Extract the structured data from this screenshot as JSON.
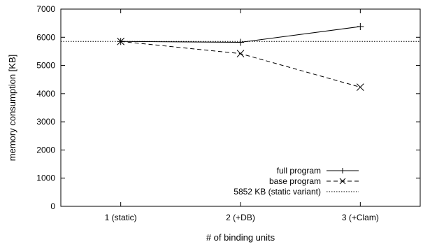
{
  "chart_data": {
    "type": "line",
    "categories": [
      "1 (static)",
      "2 (+DB)",
      "3 (+Clam)"
    ],
    "x": [
      1,
      2,
      3
    ],
    "xlabel": "# of binding units",
    "ylabel": "memory consumption [KB]",
    "ylim": [
      0,
      7000
    ],
    "xlim": [
      0.5,
      3.5
    ],
    "yticks": [
      "0",
      "1000",
      "2000",
      "3000",
      "4000",
      "5000",
      "6000",
      "7000"
    ],
    "grid": false,
    "legend_position": "bottom-right",
    "series": [
      {
        "name": "full program",
        "values": [
          5852,
          5820,
          6380
        ],
        "marker": "plus",
        "line_style": "solid",
        "color": "#000000"
      },
      {
        "name": "base program",
        "values": [
          5852,
          5420,
          4230
        ],
        "marker": "cross",
        "line_style": "dashed",
        "color": "#000000"
      }
    ],
    "reference_lines": [
      {
        "name": "5852 KB (static variant)",
        "value": 5852,
        "line_style": "dotted",
        "color": "#000000"
      }
    ]
  }
}
